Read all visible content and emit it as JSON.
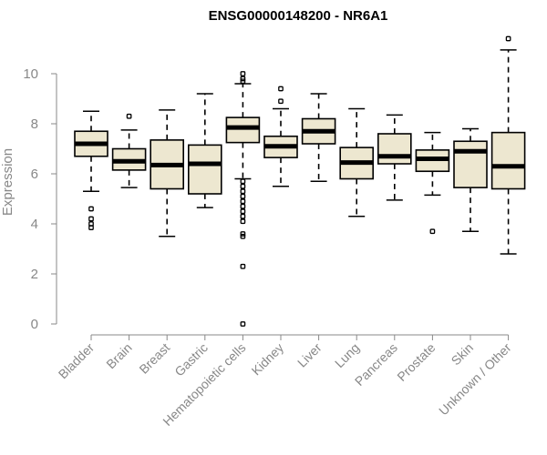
{
  "chart_data": {
    "type": "boxplot",
    "title": "ENSG00000148200 - NR6A1",
    "xlabel": "",
    "ylabel": "Expression",
    "ylim": [
      0,
      11.5
    ],
    "yticks": [
      0,
      2,
      4,
      6,
      8,
      10
    ],
    "colors": {
      "box_fill": "#EDE7D0",
      "stroke": "#000000",
      "axis": "#888888"
    },
    "categories": [
      "Bladder",
      "Brain",
      "Breast",
      "Gastric",
      "Hematopoietic cells",
      "Kidney",
      "Liver",
      "Lung",
      "Pancreas",
      "Prostate",
      "Skin",
      "Unknown / Other"
    ],
    "boxes": [
      {
        "min": 5.3,
        "q1": 6.7,
        "median": 7.2,
        "q3": 7.7,
        "max": 8.5,
        "outliers": [
          4.6,
          4.2,
          4.0,
          3.85
        ]
      },
      {
        "min": 5.45,
        "q1": 6.15,
        "median": 6.5,
        "q3": 7.0,
        "max": 7.75,
        "outliers": [
          8.3
        ]
      },
      {
        "min": 3.5,
        "q1": 5.4,
        "median": 6.35,
        "q3": 7.35,
        "max": 8.55,
        "outliers": []
      },
      {
        "min": 4.65,
        "q1": 5.2,
        "median": 6.4,
        "q3": 7.15,
        "max": 9.2,
        "outliers": []
      },
      {
        "min": 5.8,
        "q1": 7.25,
        "median": 7.85,
        "q3": 8.25,
        "max": 9.6,
        "outliers": [
          10.0,
          9.8,
          9.7,
          5.7,
          5.5,
          5.3,
          5.1,
          4.9,
          4.7,
          4.5,
          4.3,
          4.1,
          3.6,
          3.5,
          2.3,
          0.0
        ]
      },
      {
        "min": 5.5,
        "q1": 6.65,
        "median": 7.1,
        "q3": 7.5,
        "max": 8.6,
        "outliers": [
          9.4,
          8.9
        ]
      },
      {
        "min": 5.7,
        "q1": 7.2,
        "median": 7.7,
        "q3": 8.2,
        "max": 9.2,
        "outliers": []
      },
      {
        "min": 4.3,
        "q1": 5.8,
        "median": 6.45,
        "q3": 7.05,
        "max": 8.6,
        "outliers": []
      },
      {
        "min": 4.95,
        "q1": 6.4,
        "median": 6.7,
        "q3": 7.6,
        "max": 8.35,
        "outliers": []
      },
      {
        "min": 5.15,
        "q1": 6.1,
        "median": 6.6,
        "q3": 6.95,
        "max": 7.65,
        "outliers": [
          3.7
        ]
      },
      {
        "min": 3.7,
        "q1": 5.45,
        "median": 6.9,
        "q3": 7.3,
        "max": 7.8,
        "outliers": []
      },
      {
        "min": 2.8,
        "q1": 5.4,
        "median": 6.3,
        "q3": 7.65,
        "max": 10.95,
        "outliers": [
          11.4
        ]
      }
    ]
  }
}
